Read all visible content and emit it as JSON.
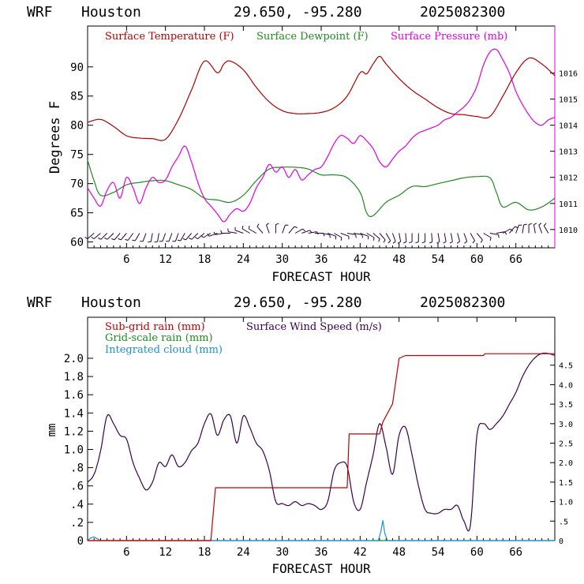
{
  "colors": {
    "temperature": "#b00000",
    "dewpoint": "#1f8a1f",
    "pressure": "#e000e0",
    "subgrid_rain": "#c00000",
    "grid_rain": "#1f8a1f",
    "cloud": "#1e90d0",
    "wind_speed": "#3a0050",
    "wind_barbs": "#2a0040"
  },
  "chart_data": [
    {
      "type": "line",
      "header": {
        "model": "WRF",
        "location": "Houston",
        "coords": "29.650, -95.280",
        "init": "2025082300"
      },
      "xlabel": "FORECAST HOUR",
      "ylabel": "Degrees F",
      "xlim": [
        0,
        72
      ],
      "ylim": [
        59,
        97
      ],
      "y2lim": [
        1009.3,
        1017.8
      ],
      "xticks": [
        "6",
        "12",
        "18",
        "24",
        "30",
        "36",
        "42",
        "48",
        "54",
        "60",
        "66"
      ],
      "yticks": [
        "60",
        "65",
        "70",
        "75",
        "80",
        "85",
        "90"
      ],
      "y2ticks": [
        "1010",
        "1011",
        "1012",
        "1013",
        "1014",
        "1015",
        "1016"
      ],
      "series": [
        {
          "name": "Surface Temperature (F)",
          "axis": "left",
          "x": [
            0,
            2,
            4,
            6,
            8,
            10,
            12,
            14,
            16,
            18,
            20,
            21,
            22,
            24,
            26,
            28,
            30,
            32,
            34,
            36,
            38,
            40,
            42,
            43,
            44,
            45,
            46,
            48,
            50,
            52,
            54,
            56,
            58,
            60,
            62,
            64,
            66,
            68,
            70,
            72
          ],
          "values": [
            80.5,
            81,
            79.8,
            78.2,
            77.8,
            77.7,
            77.6,
            81,
            86,
            91,
            89,
            90.5,
            91,
            89.5,
            86.5,
            84,
            82.5,
            82,
            82,
            82.2,
            83,
            85,
            89,
            88.8,
            90.5,
            91.8,
            90.5,
            88,
            86,
            84.5,
            83,
            82,
            81.8,
            81.5,
            81.5,
            85,
            89,
            91.5,
            90.5,
            88.5
          ]
        },
        {
          "name": "Surface Dewpoint (F)",
          "axis": "left",
          "x": [
            0,
            1,
            2,
            4,
            6,
            8,
            10,
            12,
            14,
            16,
            18,
            20,
            22,
            24,
            26,
            28,
            30,
            32,
            34,
            36,
            38,
            40,
            42,
            43,
            44,
            46,
            48,
            50,
            52,
            54,
            56,
            58,
            60,
            62,
            63,
            64,
            66,
            68,
            70,
            72
          ],
          "values": [
            74,
            70.5,
            68,
            68.5,
            69.8,
            70.2,
            70.5,
            70.5,
            69.8,
            69,
            67.5,
            67.2,
            66.8,
            68,
            70.5,
            72.5,
            72.8,
            72.8,
            72.5,
            71.5,
            71.5,
            71,
            68.5,
            65,
            64.5,
            66.8,
            68,
            69.5,
            69.5,
            70,
            70.5,
            71,
            71.2,
            71,
            68.5,
            66,
            66.8,
            65.5,
            66,
            67.5
          ]
        },
        {
          "name": "Surface Pressure (mb)",
          "axis": "right",
          "x": [
            0,
            1,
            2,
            3,
            4,
            5,
            6,
            7,
            8,
            9,
            10,
            11,
            12,
            13,
            14,
            15,
            16,
            17,
            18,
            19,
            20,
            21,
            22,
            23,
            24,
            25,
            26,
            27,
            28,
            29,
            30,
            31,
            32,
            33,
            34,
            35,
            36,
            37,
            38,
            39,
            40,
            41,
            42,
            43,
            44,
            45,
            46,
            47,
            48,
            49,
            50,
            51,
            52,
            53,
            54,
            55,
            56,
            57,
            58,
            59,
            60,
            61,
            62,
            63,
            64,
            65,
            66,
            67,
            68,
            69,
            70,
            71,
            72
          ],
          "values": [
            1011.6,
            1011.2,
            1010.9,
            1011.5,
            1011.8,
            1011.2,
            1012.0,
            1011.6,
            1011.0,
            1011.6,
            1012.0,
            1011.8,
            1011.9,
            1012.4,
            1012.8,
            1013.2,
            1012.6,
            1011.8,
            1011.2,
            1010.9,
            1010.6,
            1010.3,
            1010.6,
            1010.8,
            1010.7,
            1011.0,
            1011.6,
            1012.0,
            1012.5,
            1012.2,
            1012.4,
            1012.0,
            1012.3,
            1011.9,
            1012.1,
            1012.3,
            1012.4,
            1012.8,
            1013.3,
            1013.6,
            1013.5,
            1013.3,
            1013.6,
            1013.4,
            1013.1,
            1012.6,
            1012.4,
            1012.7,
            1013.0,
            1013.2,
            1013.5,
            1013.7,
            1013.8,
            1013.9,
            1014.0,
            1014.2,
            1014.3,
            1014.5,
            1014.7,
            1015.0,
            1015.5,
            1016.3,
            1016.8,
            1016.9,
            1016.5,
            1016.0,
            1015.3,
            1014.8,
            1014.4,
            1014.1,
            1014.0,
            1014.2,
            1014.3
          ]
        }
      ],
      "wind_barbs": {
        "x": [
          1,
          2,
          3,
          4,
          5,
          6,
          7,
          8,
          9,
          10,
          11,
          12,
          13,
          14,
          15,
          16,
          17,
          18,
          19,
          20,
          21,
          22,
          23,
          24,
          25,
          26,
          27,
          28,
          29,
          30,
          31,
          32,
          33,
          34,
          35,
          36,
          37,
          38,
          39,
          40,
          41,
          42,
          43,
          44,
          45,
          46,
          47,
          48,
          49,
          50,
          51,
          52,
          53,
          54,
          55,
          56,
          57,
          58,
          59,
          60,
          61,
          62,
          63,
          64,
          65,
          66,
          67,
          68,
          69,
          70,
          71
        ],
        "direction_deg": [
          230,
          230,
          225,
          225,
          220,
          220,
          215,
          210,
          200,
          190,
          190,
          200,
          200,
          200,
          210,
          220,
          225,
          230,
          240,
          250,
          260,
          270,
          280,
          290,
          300,
          300,
          320,
          340,
          0,
          20,
          40,
          60,
          70,
          80,
          90,
          100,
          110,
          120,
          110,
          100,
          100,
          110,
          120,
          130,
          140,
          150,
          160,
          170,
          175,
          180,
          180,
          180,
          175,
          170,
          170,
          170,
          165,
          160,
          150,
          140,
          120,
          100,
          80,
          60,
          40,
          20,
          10,
          360,
          350,
          340,
          330
        ],
        "speed_kt": [
          5,
          5,
          5,
          5,
          5,
          5,
          5,
          5,
          5,
          5,
          5,
          5,
          5,
          5,
          5,
          5,
          5,
          5,
          5,
          5,
          5,
          5,
          5,
          5,
          5,
          5,
          5,
          5,
          5,
          5,
          5,
          5,
          5,
          5,
          5,
          5,
          5,
          5,
          5,
          5,
          5,
          5,
          5,
          5,
          5,
          5,
          5,
          5,
          5,
          5,
          5,
          5,
          5,
          5,
          5,
          5,
          5,
          5,
          5,
          5,
          5,
          5,
          5,
          5,
          5,
          5,
          5,
          5,
          5,
          5,
          5
        ]
      }
    },
    {
      "type": "line",
      "header": {
        "model": "WRF",
        "location": "Houston",
        "coords": "29.650, -95.280",
        "init": "2025082300"
      },
      "xlabel": "FORECAST HOUR",
      "ylabel": "mm",
      "xlim": [
        0,
        72
      ],
      "ylim": [
        0,
        2.45
      ],
      "y2lim": [
        0,
        5.73
      ],
      "xticks": [
        "6",
        "12",
        "18",
        "24",
        "30",
        "36",
        "42",
        "48",
        "54",
        "60",
        "66"
      ],
      "yticks": [
        "0",
        "0.2",
        "0.4",
        "0.6",
        "0.8",
        "1.0",
        "1.2",
        "1.4",
        "1.6",
        "1.8",
        "2.0"
      ],
      "yticklabels": [
        "0",
        ".2",
        ".4",
        ".6",
        ".8",
        "1.0",
        "1.2",
        "1.4",
        "1.6",
        "1.8",
        "2.0"
      ],
      "y2ticks": [
        "0",
        ".5",
        "1.0",
        "1.5",
        "2.0",
        "2.5",
        "3.0",
        "3.5",
        "4.0",
        "4.5"
      ],
      "series": [
        {
          "name": "Sub-grid rain (mm)",
          "axis": "left",
          "x": [
            0,
            19,
            19.7,
            40,
            40.3,
            45,
            45.5,
            47,
            48,
            49,
            61,
            61.2,
            72
          ],
          "values": [
            0,
            0,
            0.58,
            0.58,
            1.17,
            1.17,
            1.3,
            1.5,
            2.0,
            2.03,
            2.03,
            2.05,
            2.05
          ]
        },
        {
          "name": "Grid-scale rain (mm)",
          "axis": "left",
          "x": [
            0,
            72
          ],
          "values": [
            0,
            0
          ]
        },
        {
          "name": "Integrated cloud (mm)",
          "axis": "left",
          "x": [
            0,
            0.5,
            1,
            1.5,
            2,
            44.8,
            45.2,
            45.5,
            45.8,
            46.2,
            72
          ],
          "values": [
            0,
            0.03,
            0.04,
            0.02,
            0,
            0,
            0.1,
            0.22,
            0.08,
            0,
            0
          ]
        },
        {
          "name": "Surface Wind Speed (m/s)",
          "axis": "right",
          "x": [
            0,
            1,
            2,
            3,
            4,
            5,
            6,
            7,
            8,
            9,
            10,
            11,
            12,
            13,
            14,
            15,
            16,
            17,
            18,
            19,
            20,
            21,
            22,
            23,
            24,
            25,
            26,
            27,
            28,
            29,
            30,
            31,
            32,
            33,
            34,
            35,
            36,
            37,
            38,
            39,
            40,
            41,
            42,
            43,
            44,
            45,
            46,
            47,
            48,
            49,
            50,
            51,
            52,
            53,
            54,
            55,
            56,
            57,
            58,
            59,
            60,
            61,
            62,
            63,
            64,
            65,
            66,
            67,
            68,
            69,
            70,
            71,
            72
          ],
          "values": [
            1.5,
            1.7,
            2.3,
            3.2,
            3.0,
            2.7,
            2.6,
            2.0,
            1.6,
            1.3,
            1.5,
            2.0,
            1.9,
            2.2,
            1.9,
            2.0,
            2.3,
            2.5,
            3.0,
            3.25,
            2.7,
            3.1,
            3.2,
            2.5,
            3.2,
            2.9,
            2.5,
            2.3,
            1.8,
            1.0,
            0.95,
            0.9,
            1.0,
            0.9,
            0.95,
            0.9,
            0.8,
            1.0,
            1.8,
            2.0,
            1.9,
            1.0,
            0.8,
            1.5,
            2.2,
            3.0,
            2.4,
            1.7,
            2.7,
            2.9,
            2.2,
            1.4,
            0.8,
            0.7,
            0.7,
            0.8,
            0.8,
            0.9,
            0.5,
            0.4,
            2.7,
            3.0,
            2.85,
            3.0,
            3.2,
            3.5,
            3.8,
            4.2,
            4.5,
            4.7,
            4.8,
            4.8,
            4.75
          ]
        }
      ]
    }
  ]
}
